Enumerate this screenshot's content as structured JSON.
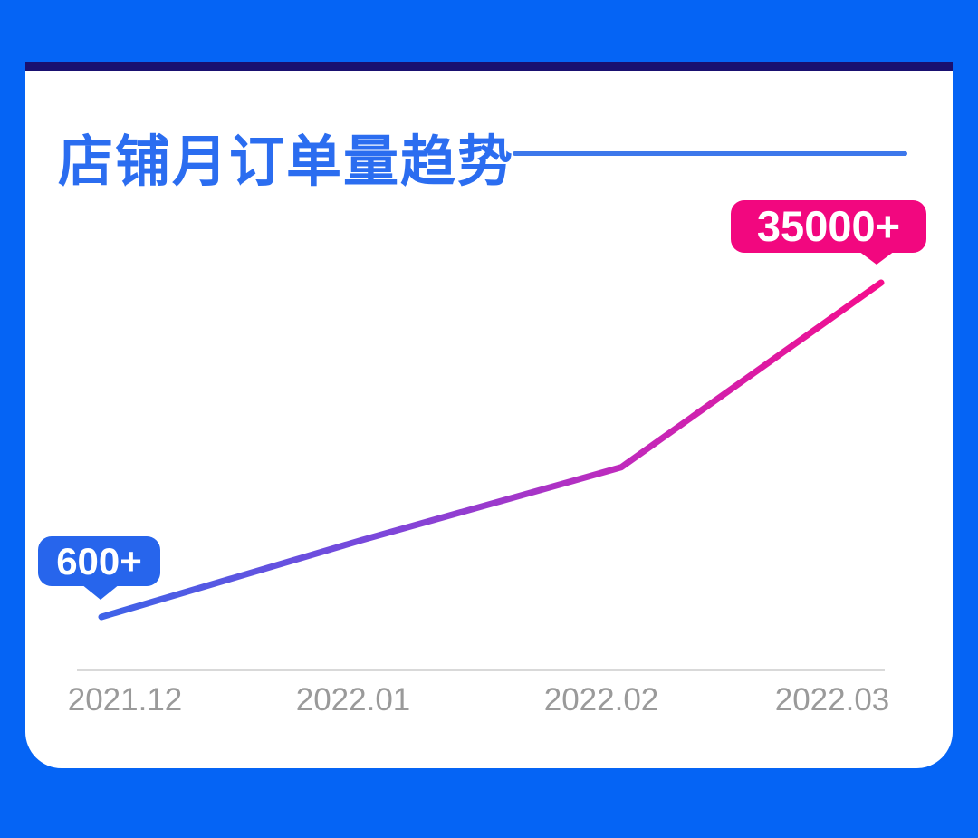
{
  "page": {
    "background_color": "#0564F5",
    "card_background": "#FFFFFF",
    "top_bar_color": "#191070"
  },
  "header": {
    "title": "店铺月订单量趋势",
    "title_color": "#2B6DF0",
    "underline_color": "#3D78EB"
  },
  "chart_data": {
    "type": "line",
    "title": "店铺月订单量趋势",
    "categories": [
      "2021.12",
      "2022.01",
      "2022.02",
      "2022.03"
    ],
    "values": [
      600,
      8500,
      16000,
      35000
    ],
    "data_labels": [
      "600+",
      null,
      null,
      "35000+"
    ],
    "xlabel": "",
    "ylabel": "",
    "ylim": [
      0,
      36000
    ],
    "grid": false,
    "legend": false,
    "line_gradient": [
      "#3E63E8",
      "#7A48DB",
      "#C02ABC",
      "#F50D8C"
    ],
    "start_badge_color": "#2765EC",
    "end_badge_color": "#F2077F",
    "axis_line_color": "#D9D9D9",
    "tick_label_color": "#9A9A9A"
  }
}
